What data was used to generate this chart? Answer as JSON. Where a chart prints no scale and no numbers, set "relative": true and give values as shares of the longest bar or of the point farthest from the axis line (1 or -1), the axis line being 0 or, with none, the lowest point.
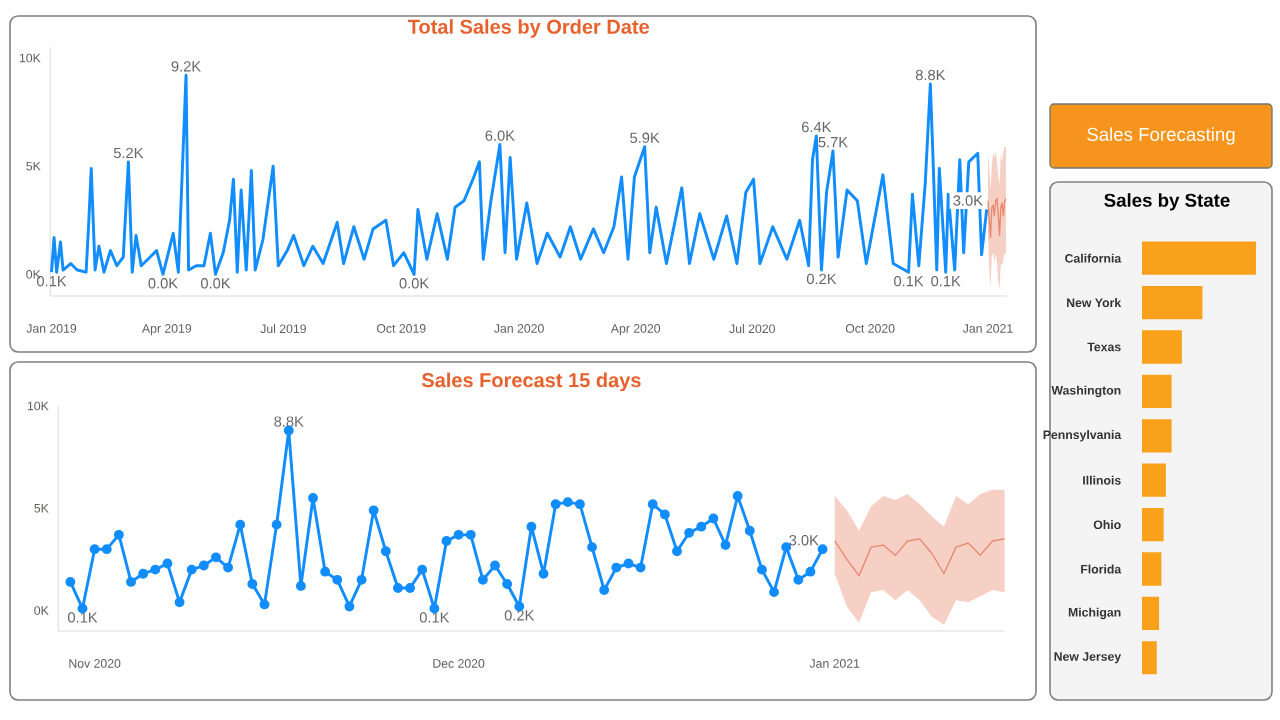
{
  "chart_data": [
    {
      "type": "line",
      "title": "Total Sales by Order Date",
      "xlim": [
        "2018-12-31",
        "2021-01-16"
      ],
      "ylim": [
        -1000,
        10500
      ],
      "xticks": [
        {
          "value": "2019-01-01",
          "label": "Jan 2019"
        },
        {
          "value": "2019-04-01",
          "label": "Apr 2019"
        },
        {
          "value": "2019-07-01",
          "label": "Jul 2019"
        },
        {
          "value": "2019-10-01",
          "label": "Oct 2019"
        },
        {
          "value": "2020-01-01",
          "label": "Jan 2020"
        },
        {
          "value": "2020-04-01",
          "label": "Apr 2020"
        },
        {
          "value": "2020-07-01",
          "label": "Jul 2020"
        },
        {
          "value": "2020-10-01",
          "label": "Oct 2020"
        },
        {
          "value": "2021-01-01",
          "label": "Jan 2021"
        }
      ],
      "yticks": [
        {
          "value": 0,
          "label": "0K"
        },
        {
          "value": 5000,
          "label": "5K"
        },
        {
          "value": 10000,
          "label": "10K"
        }
      ],
      "series": [
        {
          "color": "#118dff",
          "x": [
            "2019-01-01",
            "2019-01-03",
            "2019-01-05",
            "2019-01-08",
            "2019-01-10",
            "2019-01-16",
            "2019-01-21",
            "2019-01-28",
            "2019-01-30",
            "2019-02-01",
            "2019-02-04",
            "2019-02-07",
            "2019-02-11",
            "2019-02-16",
            "2019-02-21",
            "2019-02-26",
            "2019-03-02",
            "2019-03-05",
            "2019-03-08",
            "2019-03-12",
            "2019-03-19",
            "2019-03-24",
            "2019-03-29",
            "2019-04-06",
            "2019-04-10",
            "2019-04-16",
            "2019-04-18",
            "2019-04-24",
            "2019-04-30",
            "2019-05-05",
            "2019-05-09",
            "2019-05-15",
            "2019-05-20",
            "2019-05-23",
            "2019-05-26",
            "2019-05-29",
            "2019-06-02",
            "2019-06-06",
            "2019-06-09",
            "2019-06-15",
            "2019-06-23",
            "2019-06-27",
            "2019-07-04",
            "2019-07-09",
            "2019-07-17",
            "2019-07-24",
            "2019-08-01",
            "2019-08-12",
            "2019-08-17",
            "2019-08-25",
            "2019-09-02",
            "2019-09-09",
            "2019-09-19",
            "2019-09-25",
            "2019-10-03",
            "2019-10-11",
            "2019-10-14",
            "2019-10-21",
            "2019-10-29",
            "2019-11-06",
            "2019-11-12",
            "2019-11-19",
            "2019-11-26",
            "2019-12-01",
            "2019-12-04",
            "2019-12-10",
            "2019-12-17",
            "2019-12-21",
            "2019-12-25",
            "2019-12-30",
            "2020-01-07",
            "2020-01-15",
            "2020-01-23",
            "2020-02-02",
            "2020-02-10",
            "2020-02-18",
            "2020-02-28",
            "2020-03-07",
            "2020-03-15",
            "2020-03-21",
            "2020-03-26",
            "2020-03-31",
            "2020-04-08",
            "2020-04-12",
            "2020-04-17",
            "2020-04-25",
            "2020-05-07",
            "2020-05-13",
            "2020-05-21",
            "2020-06-01",
            "2020-06-11",
            "2020-06-19",
            "2020-06-26",
            "2020-07-02",
            "2020-07-07",
            "2020-07-17",
            "2020-07-28",
            "2020-08-07",
            "2020-08-14",
            "2020-08-17",
            "2020-08-20",
            "2020-08-24",
            "2020-08-28",
            "2020-09-02",
            "2020-09-06",
            "2020-09-13",
            "2020-09-21",
            "2020-09-28",
            "2020-10-11",
            "2020-10-19",
            "2020-10-31",
            "2020-11-03",
            "2020-11-08",
            "2020-11-13",
            "2020-11-17",
            "2020-11-19",
            "2020-11-22",
            "2020-11-24",
            "2020-11-29",
            "2020-12-01",
            "2020-12-06",
            "2020-12-10",
            "2020-12-13",
            "2020-12-17",
            "2020-12-24",
            "2020-12-27",
            "2020-12-31"
          ],
          "values": [
            100,
            1700,
            100,
            1500,
            200,
            500,
            200,
            100,
            2300,
            4900,
            200,
            1300,
            100,
            1100,
            400,
            800,
            5200,
            100,
            1800,
            400,
            800,
            1100,
            0,
            1900,
            100,
            9200,
            200,
            400,
            400,
            1900,
            0,
            1000,
            2500,
            4400,
            100,
            3900,
            200,
            4800,
            200,
            1600,
            5000,
            400,
            1100,
            1800,
            400,
            1300,
            500,
            2400,
            500,
            2200,
            700,
            2100,
            2500,
            400,
            1000,
            0,
            3000,
            700,
            2800,
            700,
            3100,
            3400,
            4400,
            5200,
            700,
            3400,
            6000,
            1000,
            5400,
            700,
            3300,
            500,
            1900,
            800,
            2200,
            700,
            2100,
            1000,
            2200,
            4500,
            700,
            4500,
            5900,
            1000,
            3100,
            500,
            4000,
            500,
            2800,
            700,
            2700,
            500,
            3800,
            4400,
            500,
            2200,
            700,
            2500,
            400,
            5300,
            6400,
            200,
            3800,
            5700,
            800,
            3900,
            3400,
            500,
            4600,
            500,
            100,
            3700,
            400,
            4200,
            8800,
            5500,
            200,
            4900,
            100,
            3700,
            200,
            5300,
            1000,
            5200,
            5600,
            900,
            3000
          ],
          "value_labels": [
            "0.1K",
            null,
            null,
            null,
            null,
            null,
            null,
            null,
            null,
            null,
            null,
            null,
            null,
            null,
            null,
            null,
            "5.2K",
            null,
            null,
            null,
            null,
            null,
            "0.0K",
            null,
            null,
            "9.2K",
            null,
            null,
            null,
            null,
            "0.0K",
            null,
            null,
            null,
            null,
            null,
            null,
            null,
            null,
            null,
            null,
            null,
            null,
            null,
            null,
            null,
            null,
            null,
            null,
            null,
            null,
            null,
            null,
            null,
            null,
            "0.0K",
            null,
            null,
            null,
            null,
            null,
            null,
            null,
            null,
            null,
            null,
            "6.0K",
            null,
            null,
            null,
            null,
            null,
            null,
            null,
            null,
            null,
            null,
            null,
            null,
            null,
            null,
            null,
            "5.9K",
            null,
            null,
            null,
            null,
            null,
            null,
            null,
            null,
            null,
            null,
            null,
            null,
            null,
            null,
            null,
            null,
            null,
            "6.4K",
            "0.2K",
            null,
            "5.7K",
            null,
            null,
            null,
            null,
            null,
            null,
            "0.1K",
            null,
            null,
            null,
            "8.8K",
            null,
            null,
            null,
            "0.1K",
            null,
            null,
            null,
            null,
            null,
            null,
            null,
            "3.0K"
          ]
        },
        {
          "color": "#e8896e",
          "x": [
            "2021-01-01",
            "2021-01-02",
            "2021-01-03",
            "2021-01-04",
            "2021-01-05",
            "2021-01-06",
            "2021-01-07",
            "2021-01-08",
            "2021-01-09",
            "2021-01-10",
            "2021-01-11",
            "2021-01-12",
            "2021-01-13",
            "2021-01-14",
            "2021-01-15"
          ],
          "values": [
            3400,
            2500,
            1700,
            3100,
            3200,
            2700,
            3400,
            3500,
            2800,
            1800,
            3100,
            3300,
            2700,
            3400,
            3500
          ],
          "lower": [
            1800,
            200,
            -600,
            900,
            1000,
            500,
            1000,
            500,
            -300,
            -700,
            500,
            400,
            700,
            1000,
            900
          ],
          "upper": [
            5600,
            4900,
            3900,
            5100,
            5600,
            5400,
            5700,
            5200,
            4600,
            4100,
            5600,
            5200,
            5700,
            5900,
            5900
          ]
        }
      ]
    },
    {
      "type": "line",
      "title": "Sales Forecast 15 days",
      "xlim": [
        "2020-10-29",
        "2021-01-15"
      ],
      "ylim": [
        -1000,
        10000
      ],
      "xticks": [
        {
          "value": "2020-11-01",
          "label": "Nov 2020"
        },
        {
          "value": "2020-12-01",
          "label": "Dec 2020"
        },
        {
          "value": "2021-01-01",
          "label": "Jan 2021"
        }
      ],
      "yticks": [
        {
          "value": 0,
          "label": "0K"
        },
        {
          "value": 5000,
          "label": "5K"
        },
        {
          "value": 10000,
          "label": "10K"
        }
      ],
      "series": [
        {
          "color": "#118dff",
          "marker": "circle",
          "x": [
            "2020-10-30",
            "2020-10-31",
            "2020-11-01",
            "2020-11-02",
            "2020-11-03",
            "2020-11-04",
            "2020-11-05",
            "2020-11-06",
            "2020-11-07",
            "2020-11-08",
            "2020-11-09",
            "2020-11-10",
            "2020-11-11",
            "2020-11-12",
            "2020-11-13",
            "2020-11-14",
            "2020-11-15",
            "2020-11-16",
            "2020-11-17",
            "2020-11-18",
            "2020-11-19",
            "2020-11-20",
            "2020-11-21",
            "2020-11-22",
            "2020-11-23",
            "2020-11-24",
            "2020-11-25",
            "2020-11-26",
            "2020-11-27",
            "2020-11-28",
            "2020-11-29",
            "2020-11-30",
            "2020-12-01",
            "2020-12-02",
            "2020-12-03",
            "2020-12-04",
            "2020-12-05",
            "2020-12-06",
            "2020-12-07",
            "2020-12-08",
            "2020-12-09",
            "2020-12-10",
            "2020-12-11",
            "2020-12-12",
            "2020-12-13",
            "2020-12-14",
            "2020-12-15",
            "2020-12-16",
            "2020-12-17",
            "2020-12-18",
            "2020-12-19",
            "2020-12-20",
            "2020-12-21",
            "2020-12-22",
            "2020-12-23",
            "2020-12-24",
            "2020-12-25",
            "2020-12-26",
            "2020-12-27",
            "2020-12-28",
            "2020-12-29",
            "2020-12-30",
            "2020-12-31"
          ],
          "values": [
            1400,
            100,
            3000,
            3000,
            3700,
            1400,
            1800,
            2000,
            2300,
            400,
            2000,
            2200,
            2600,
            2100,
            4200,
            1300,
            300,
            4200,
            8800,
            1200,
            5500,
            1900,
            1500,
            200,
            1500,
            4900,
            2900,
            1100,
            1100,
            2000,
            100,
            3400,
            3700,
            3700,
            1500,
            2200,
            1300,
            200,
            4100,
            1800,
            5200,
            5300,
            5200,
            3100,
            1000,
            2100,
            2300,
            2100,
            5200,
            4700,
            2900,
            3800,
            4100,
            4500,
            3200,
            5600,
            3900,
            2000,
            900,
            3100,
            1500,
            1900,
            3000
          ],
          "value_labels": [
            null,
            "0.1K",
            null,
            null,
            null,
            null,
            null,
            null,
            null,
            null,
            null,
            null,
            null,
            null,
            null,
            null,
            null,
            null,
            "8.8K",
            null,
            null,
            null,
            null,
            null,
            null,
            null,
            null,
            null,
            null,
            null,
            "0.1K",
            null,
            null,
            null,
            null,
            null,
            null,
            "0.2K",
            null,
            null,
            null,
            null,
            null,
            null,
            null,
            null,
            null,
            null,
            null,
            null,
            null,
            null,
            null,
            null,
            null,
            null,
            null,
            null,
            null,
            null,
            null,
            null,
            "3.0K"
          ]
        },
        {
          "color": "#e8896e",
          "x": [
            "2021-01-01",
            "2021-01-02",
            "2021-01-03",
            "2021-01-04",
            "2021-01-05",
            "2021-01-06",
            "2021-01-07",
            "2021-01-08",
            "2021-01-09",
            "2021-01-10",
            "2021-01-11",
            "2021-01-12",
            "2021-01-13",
            "2021-01-14",
            "2021-01-15"
          ],
          "values": [
            3400,
            2500,
            1700,
            3100,
            3200,
            2700,
            3400,
            3500,
            2800,
            1800,
            3100,
            3300,
            2700,
            3400,
            3500
          ],
          "lower": [
            1800,
            200,
            -600,
            900,
            1000,
            500,
            1000,
            500,
            -300,
            -700,
            500,
            400,
            700,
            1000,
            900
          ],
          "upper": [
            5600,
            4900,
            3900,
            5100,
            5600,
            5400,
            5700,
            5200,
            4600,
            4100,
            5600,
            5200,
            5700,
            5900,
            5900
          ]
        }
      ]
    },
    {
      "type": "bar",
      "orientation": "horizontal",
      "relative": true,
      "title": "Sales by State",
      "color": "#f9a11b",
      "categories": [
        "California",
        "New York",
        "Texas",
        "Washington",
        "Pennsylvania",
        "Illinois",
        "Ohio",
        "Florida",
        "Michigan",
        "New Jersey"
      ],
      "values": [
        1,
        0.53,
        0.35,
        0.26,
        0.26,
        0.21,
        0.19,
        0.17,
        0.15,
        0.13
      ]
    },
    {
      "type": "other",
      "title": "Sales Forecasting"
    }
  ]
}
